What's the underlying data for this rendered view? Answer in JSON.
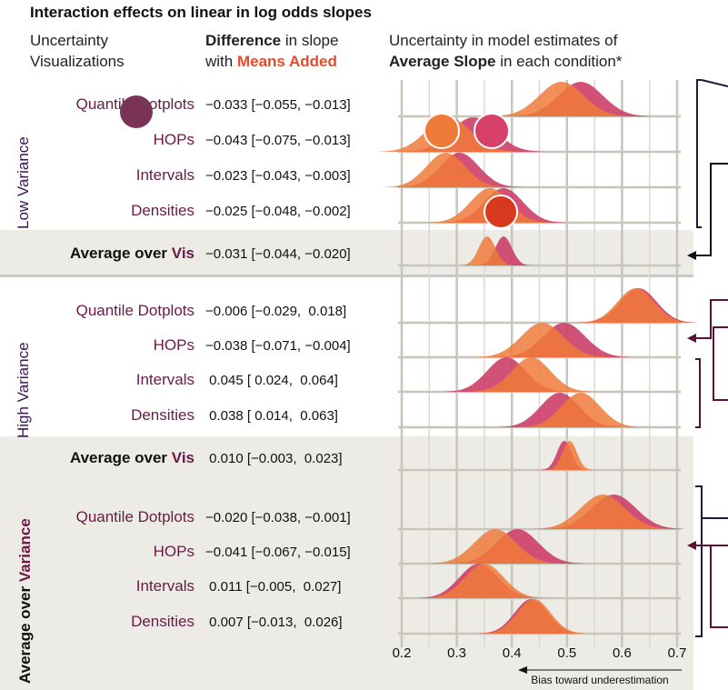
{
  "chart_data": {
    "type": "area",
    "title": "Interaction effects on linear in log odds slopes",
    "headers": {
      "col1_line1": "Uncertainty",
      "col1_line2": "Visualizations",
      "col2_line1_bold": "Difference",
      "col2_line1_rest": " in slope",
      "col2_line2_pre": "with ",
      "col2_line2_orange": "Means Added",
      "col3_line1": "Uncertainty in model estimates of",
      "col3_line2_bold": "Average Slope",
      "col3_line2_rest": " in each condition*"
    },
    "groups": {
      "low": "Low Variance",
      "high": "High Variance",
      "avg_pre": "Average over ",
      "avg_bold": "Variance"
    },
    "avg_vis": {
      "pre": "Average over ",
      "vis": "Vis"
    },
    "xticks": [
      "0.2",
      "0.3",
      "0.4",
      "0.5",
      "0.6",
      "0.7"
    ],
    "xlim": [
      0.2,
      0.7
    ],
    "xnote": "Bias toward underestimation",
    "series_colors": {
      "with_means": "#f07a3a",
      "without_means": "#cc3f67",
      "overlap": "#e23e2a"
    },
    "rows": [
      {
        "label": "Quantile Dotplots",
        "ci": "−0.033 [−0.055, −0.013]",
        "d1": {
          "m": 0.49,
          "s": 0.04
        },
        "d2": {
          "m": 0.525,
          "s": 0.04
        }
      },
      {
        "label": "HOPs",
        "ci": "−0.043 [−0.075, −0.013]",
        "d1": {
          "m": 0.285,
          "s": 0.04
        },
        "d2": {
          "m": 0.33,
          "s": 0.04
        }
      },
      {
        "label": "Intervals",
        "ci": "−0.023 [−0.043, −0.003]",
        "d1": {
          "m": 0.28,
          "s": 0.035
        },
        "d2": {
          "m": 0.305,
          "s": 0.035
        }
      },
      {
        "label": "Densities",
        "ci": "−0.025 [−0.048, −0.002]",
        "d1": {
          "m": 0.36,
          "s": 0.035
        },
        "d2": {
          "m": 0.385,
          "s": 0.035
        }
      },
      {
        "label": "Average over Vis",
        "avg": true,
        "ci": "−0.031 [−0.044, −0.020]",
        "d1": {
          "m": 0.355,
          "s": 0.015
        },
        "d2": {
          "m": 0.385,
          "s": 0.015
        }
      },
      {
        "label": "Quantile Dotplots",
        "ci": "−0.006 [−0.029,  0.018]",
        "d1": {
          "m": 0.625,
          "s": 0.033
        },
        "d2": {
          "m": 0.63,
          "s": 0.033
        }
      },
      {
        "label": "HOPs",
        "ci": "−0.038 [−0.071, −0.004]",
        "d1": {
          "m": 0.455,
          "s": 0.038
        },
        "d2": {
          "m": 0.495,
          "s": 0.038
        }
      },
      {
        "label": "Intervals",
        "ci": " 0.045 [ 0.024,  0.064]",
        "d1": {
          "m": 0.435,
          "s": 0.035
        },
        "d2": {
          "m": 0.39,
          "s": 0.035
        }
      },
      {
        "label": "Densities",
        "ci": " 0.038 [ 0.014,  0.063]",
        "d1": {
          "m": 0.525,
          "s": 0.035
        },
        "d2": {
          "m": 0.487,
          "s": 0.035
        }
      },
      {
        "label": "Average over Vis",
        "avg": true,
        "ci": " 0.010 [−0.003,  0.023]",
        "d1": {
          "m": 0.505,
          "s": 0.013
        },
        "d2": {
          "m": 0.495,
          "s": 0.013
        }
      },
      {
        "label": "Quantile Dotplots",
        "ci": "−0.020 [−0.038, −0.001]",
        "d1": {
          "m": 0.565,
          "s": 0.04
        },
        "d2": {
          "m": 0.585,
          "s": 0.04
        }
      },
      {
        "label": "HOPs",
        "ci": "−0.041 [−0.067, −0.015]",
        "d1": {
          "m": 0.37,
          "s": 0.038
        },
        "d2": {
          "m": 0.41,
          "s": 0.038
        }
      },
      {
        "label": "Intervals",
        "ci": " 0.011 [−0.005,  0.027]",
        "d1": {
          "m": 0.35,
          "s": 0.035
        },
        "d2": {
          "m": 0.34,
          "s": 0.035
        }
      },
      {
        "label": "Densities",
        "ci": " 0.007 [−0.013,  0.026]",
        "d1": {
          "m": 0.44,
          "s": 0.03
        },
        "d2": {
          "m": 0.435,
          "s": 0.03
        }
      }
    ]
  }
}
